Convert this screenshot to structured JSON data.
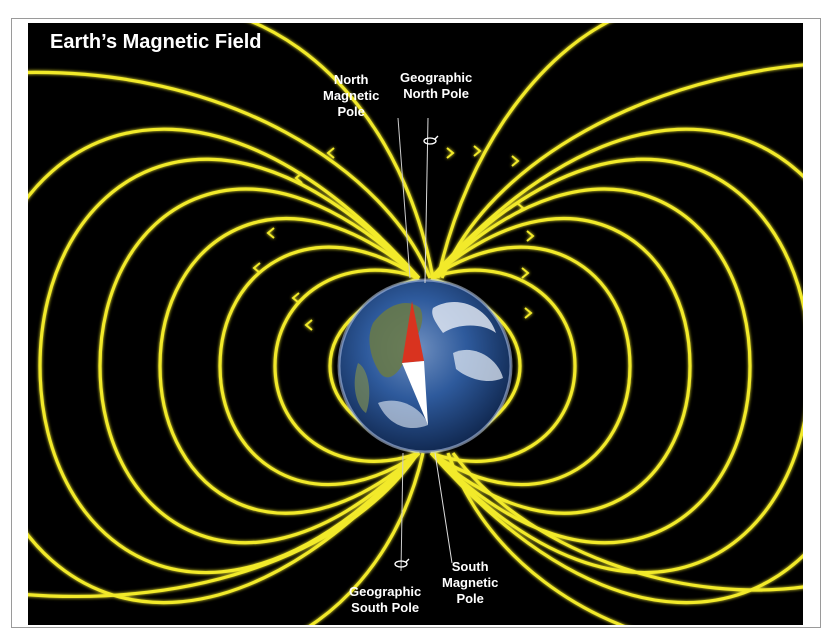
{
  "title": "Earth’s Magnetic Field",
  "labels": {
    "north_magnetic_pole": [
      "North",
      "Magnetic",
      "Pole"
    ],
    "geographic_north_pole": [
      "Geographic",
      "North Pole"
    ],
    "geographic_south_pole": [
      "Geographic",
      "South Pole"
    ],
    "south_magnetic_pole": [
      "South",
      "Magnetic",
      "Pole"
    ]
  },
  "colors": {
    "background": "#000000",
    "field_lines": "#f2ea2a",
    "label_text": "#ffffff",
    "compass_north": "#d9331f",
    "compass_south": "#ffffff",
    "ocean": "#2e5a9c"
  },
  "icons": [
    "rotation-arrow-icon",
    "compass-needle-icon",
    "earth-globe-icon"
  ]
}
